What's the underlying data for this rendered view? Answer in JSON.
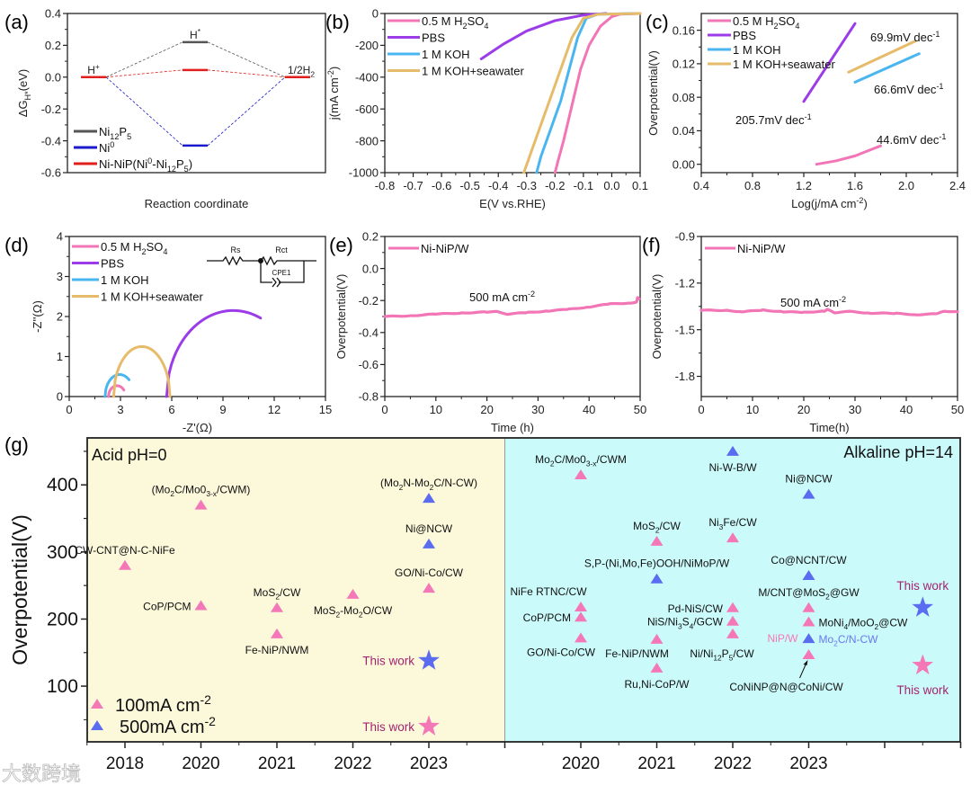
{
  "panel_labels": {
    "a": "(a)",
    "b": "(b)",
    "c": "(c)",
    "d": "(d)",
    "e": "(e)",
    "f": "(f)",
    "g": "(g)"
  },
  "watermark": "大数跨境",
  "chart_data": {
    "a": {
      "type": "line",
      "xlabel": "Reaction coordinate",
      "ylabel": "ΔG_{H*}(eV)",
      "ylim": [
        -0.6,
        0.4
      ],
      "yticks": [
        0.4,
        0.2,
        0.0,
        -0.2,
        -0.4,
        -0.6
      ],
      "yticklabels": [
        "0.4",
        "0.2",
        "0.0",
        "-0.2",
        "-0.4",
        "-0.6"
      ],
      "categories": [
        "H^{+}",
        "H^{*}",
        "1/2H_{2}"
      ],
      "series": [
        {
          "name": "Ni_{12}P_{5}",
          "color": "#555555",
          "values": [
            0,
            0.22,
            0
          ]
        },
        {
          "name": "Ni^{0}",
          "color": "#1a1acc",
          "values": [
            0,
            -0.43,
            0
          ]
        },
        {
          "name": "Ni-NiP(Ni^{0}-Ni_{12}P_{5})",
          "color": "#e0201c",
          "values": [
            0,
            0.045,
            0
          ]
        }
      ]
    },
    "b": {
      "type": "line",
      "xlabel": "E(V vs.RHE)",
      "ylabel": "j(mA cm^{-2})",
      "xlim": [
        -0.8,
        0.1
      ],
      "ylim": [
        -1000,
        0
      ],
      "xticks": [
        -0.8,
        -0.7,
        -0.6,
        -0.5,
        -0.4,
        -0.3,
        -0.2,
        -0.1,
        0.0,
        0.1
      ],
      "xticklabels": [
        "-0.8",
        "-0.7",
        "-0.6",
        "-0.5",
        "-0.4",
        "-0.3",
        "-0.2",
        "-0.1",
        "0.0",
        "0.1"
      ],
      "yticks": [
        0,
        -200,
        -400,
        -600,
        -800,
        -1000
      ],
      "yticklabels": [
        "0",
        "-200",
        "-400",
        "-600",
        "-800",
        "-1000"
      ],
      "series": [
        {
          "name": "0.5 M H_{2}SO_{4}",
          "color": "#f275b6",
          "points": [
            [
              0.1,
              0
            ],
            [
              0.03,
              -4
            ],
            [
              0.0,
              -20
            ],
            [
              -0.04,
              -80
            ],
            [
              -0.08,
              -200
            ],
            [
              -0.11,
              -350
            ],
            [
              -0.13,
              -500
            ],
            [
              -0.15,
              -650
            ],
            [
              -0.17,
              -800
            ],
            [
              -0.19,
              -930
            ],
            [
              -0.2,
              -1000
            ]
          ]
        },
        {
          "name": "PBS",
          "color": "#9b3ce8",
          "points": [
            [
              -0.02,
              0
            ],
            [
              -0.1,
              -10
            ],
            [
              -0.2,
              -45
            ],
            [
              -0.3,
              -110
            ],
            [
              -0.38,
              -190
            ],
            [
              -0.46,
              -285
            ]
          ]
        },
        {
          "name": "1 M KOH",
          "color": "#4ab6ef",
          "points": [
            [
              0.08,
              0
            ],
            [
              -0.05,
              -5
            ],
            [
              -0.09,
              -30
            ],
            [
              -0.12,
              -150
            ],
            [
              -0.15,
              -350
            ],
            [
              -0.18,
              -550
            ],
            [
              -0.22,
              -750
            ],
            [
              -0.25,
              -900
            ],
            [
              -0.265,
              -1000
            ]
          ]
        },
        {
          "name": "1 M KOH+seawater",
          "color": "#e6bc6a",
          "points": [
            [
              0.1,
              0
            ],
            [
              -0.05,
              -5
            ],
            [
              -0.1,
              -30
            ],
            [
              -0.14,
              -150
            ],
            [
              -0.18,
              -350
            ],
            [
              -0.22,
              -550
            ],
            [
              -0.26,
              -750
            ],
            [
              -0.29,
              -900
            ],
            [
              -0.31,
              -1000
            ]
          ]
        }
      ]
    },
    "c": {
      "type": "line",
      "xlabel": "Log(j/mA cm^{-2})",
      "ylabel": "Overpotential(V)",
      "xlim": [
        0.4,
        2.4
      ],
      "ylim": [
        -0.01,
        0.18
      ],
      "xticks": [
        0.4,
        0.8,
        1.2,
        1.6,
        2.0,
        2.4
      ],
      "xticklabels": [
        "0.4",
        "0.8",
        "1.2",
        "1.6",
        "2.0",
        "2.4"
      ],
      "yticks": [
        0,
        0.04,
        0.08,
        0.12,
        0.16
      ],
      "yticklabels": [
        "0.00",
        "0.04",
        "0.08",
        "0.12",
        "0.16"
      ],
      "series": [
        {
          "name": "0.5 M H_{2}SO_{4}",
          "color": "#f275b6",
          "points": [
            [
              1.3,
              0
            ],
            [
              1.45,
              0.004
            ],
            [
              1.6,
              0.01
            ],
            [
              1.7,
              0.016
            ],
            [
              1.8,
              0.022
            ]
          ],
          "tafel": "44.6mV dec^{-1}"
        },
        {
          "name": "PBS",
          "color": "#9b3ce8",
          "points": [
            [
              1.2,
              0.075
            ],
            [
              1.6,
              0.168
            ]
          ],
          "tafel": "205.7mV dec^{-1}"
        },
        {
          "name": "1 M KOH",
          "color": "#4ab6ef",
          "points": [
            [
              1.6,
              0.098
            ],
            [
              2.1,
              0.132
            ]
          ],
          "tafel": "66.6mV dec^{-1}"
        },
        {
          "name": "1 M KOH+seawater",
          "color": "#e6bc6a",
          "points": [
            [
              1.55,
              0.11
            ],
            [
              2.07,
              0.147
            ]
          ],
          "tafel": "69.9mV dec^{-1}"
        }
      ]
    },
    "d": {
      "type": "line",
      "xlabel": "-Z'(Ω)",
      "ylabel": "-Z''(Ω)",
      "xlim": [
        0,
        15
      ],
      "ylim": [
        0,
        4
      ],
      "xticks": [
        0,
        3,
        6,
        9,
        12,
        15
      ],
      "xticklabels": [
        "0",
        "3",
        "6",
        "9",
        "12",
        "15"
      ],
      "yticks": [
        0,
        1,
        2,
        3,
        4
      ],
      "yticklabels": [
        "0",
        "1",
        "2",
        "3",
        "4"
      ],
      "circuit": {
        "r1": "Rs",
        "r2": "Rct",
        "cpe": "CPE1"
      },
      "series": [
        {
          "name": "0.5 M H_{2}SO_{4}",
          "color": "#f275b6",
          "z_start": 2.3,
          "z_end": 3.3,
          "peak": 0.27,
          "z_stop": 3.2
        },
        {
          "name": "PBS",
          "color": "#9b3ce8",
          "z_start": 5.7,
          "z_end": 13.5,
          "peak": 2.15,
          "z_stop": 11.2
        },
        {
          "name": "1 M KOH",
          "color": "#4ab6ef",
          "z_start": 2.1,
          "z_end": 3.8,
          "peak": 0.55,
          "z_stop": 3.5
        },
        {
          "name": "1 M KOH+seawater",
          "color": "#e6bc6a",
          "z_start": 2.6,
          "z_end": 5.9,
          "peak": 1.25,
          "z_stop": 5.9
        }
      ]
    },
    "e": {
      "type": "line",
      "xlabel": "Time (h)",
      "ylabel": "Overpotential(V)",
      "annotation": "500 mA cm^{-2}",
      "xlim": [
        0,
        50
      ],
      "ylim": [
        -0.8,
        0.2
      ],
      "xticks": [
        0,
        10,
        20,
        30,
        40,
        50
      ],
      "xticklabels": [
        "0",
        "10",
        "20",
        "30",
        "40",
        "50"
      ],
      "yticks": [
        0.2,
        0.0,
        -0.2,
        -0.4,
        -0.6,
        -0.8
      ],
      "yticklabels": [
        "0.2",
        "0.0",
        "-0.2",
        "-0.4",
        "-0.6",
        "-0.8"
      ],
      "series": [
        {
          "name": "Ni-NiP/W",
          "color": "#f275b6",
          "points": [
            [
              0,
              -0.3
            ],
            [
              5,
              -0.295
            ],
            [
              10,
              -0.285
            ],
            [
              15,
              -0.278
            ],
            [
              20,
              -0.272
            ],
            [
              22,
              -0.27
            ],
            [
              24,
              -0.285
            ],
            [
              28,
              -0.275
            ],
            [
              32,
              -0.265
            ],
            [
              36,
              -0.255
            ],
            [
              40,
              -0.24
            ],
            [
              44,
              -0.222
            ],
            [
              48,
              -0.215
            ],
            [
              49.3,
              -0.21
            ],
            [
              49.5,
              -0.18
            ],
            [
              49.8,
              -0.19
            ]
          ]
        }
      ]
    },
    "f": {
      "type": "line",
      "xlabel": "Time(h)",
      "ylabel": "Overpotential(V)",
      "annotation": "500 mA cm^{-2}",
      "xlim": [
        0,
        50
      ],
      "ylim": [
        -1.93,
        -0.9
      ],
      "xticks": [
        0,
        10,
        20,
        30,
        40,
        50
      ],
      "xticklabels": [
        "0",
        "10",
        "20",
        "30",
        "40",
        "50"
      ],
      "yticks": [
        -0.9,
        -1.2,
        -1.5,
        -1.8
      ],
      "yticklabels": [
        "-0.9",
        "-1.2",
        "-1.5",
        "-1.8"
      ],
      "series": [
        {
          "name": "Ni-NiP/W",
          "color": "#f275b6",
          "points": [
            [
              0,
              -1.375
            ],
            [
              5,
              -1.375
            ],
            [
              8,
              -1.385
            ],
            [
              12,
              -1.373
            ],
            [
              16,
              -1.385
            ],
            [
              20,
              -1.388
            ],
            [
              24,
              -1.38
            ],
            [
              24.6,
              -1.37
            ],
            [
              26,
              -1.39
            ],
            [
              29,
              -1.383
            ],
            [
              33,
              -1.393
            ],
            [
              38,
              -1.395
            ],
            [
              42,
              -1.403
            ],
            [
              46,
              -1.398
            ],
            [
              47.5,
              -1.38
            ],
            [
              50,
              -1.385
            ]
          ]
        }
      ]
    },
    "g": {
      "type": "scatter",
      "ylabel": "Overpotential(V)",
      "ylim": [
        17,
        470
      ],
      "yticks": [
        100,
        200,
        300,
        400
      ],
      "yticklabels": [
        "100",
        "200",
        "300",
        "400"
      ],
      "regions": {
        "acid": {
          "title": "Acid pH=0",
          "color": "#fcf8da"
        },
        "alkaline": {
          "title": "Alkaline pH=14",
          "color": "#cbfafa"
        }
      },
      "years": {
        "acid": [
          "2018",
          "2020",
          "2021",
          "2022",
          "2023"
        ],
        "alkaline": [
          "2020",
          "2021",
          "2022",
          "2023"
        ]
      },
      "legend": [
        {
          "label": "100mA cm^{-2}",
          "color": "#f478b8"
        },
        {
          "label": "500mA cm^{-2}",
          "color": "#5a6cf0"
        }
      ],
      "this_work_color": "#a3246e",
      "points": [
        {
          "region": "acid",
          "year": "2018",
          "value": 280,
          "current": "100",
          "label": "CW-CNT@N-C-NiFe",
          "side": "above"
        },
        {
          "region": "acid",
          "year": "2020",
          "value": 370,
          "current": "100",
          "label": "(Mo_{2}C/Mo0_{3-x}/CWM)",
          "side": "above"
        },
        {
          "region": "acid",
          "year": "2020",
          "value": 220,
          "current": "100",
          "label": "CoP/PCM",
          "side": "left"
        },
        {
          "region": "acid",
          "year": "2021",
          "value": 217,
          "current": "100",
          "label": "MoS_{2}/CW",
          "side": "above"
        },
        {
          "region": "acid",
          "year": "2021",
          "value": 178,
          "current": "100",
          "label": "Fe-NiP/NWM",
          "side": "below"
        },
        {
          "region": "acid",
          "year": "2022",
          "value": 237,
          "current": "100",
          "label": "MoS_{2}-Mo_{2}O/CW",
          "side": "below"
        },
        {
          "region": "acid",
          "year": "2023",
          "value": 246,
          "current": "100",
          "label": "GO/Ni-Co/CW",
          "side": "above"
        },
        {
          "region": "acid",
          "year": "2023",
          "value": 380,
          "current": "500",
          "label": "(Mo_{2}N-Mo_{2}C/N-CW)",
          "side": "above"
        },
        {
          "region": "acid",
          "year": "2023",
          "value": 312,
          "current": "500",
          "label": "Ni@NCW",
          "side": "above"
        },
        {
          "region": "acid",
          "year": "2023",
          "value": 138,
          "current": "500",
          "label": "This work",
          "side": "left",
          "this_work": true
        },
        {
          "region": "acid",
          "year": "2023",
          "value": 40,
          "current": "100",
          "label": "This work",
          "side": "left",
          "this_work": true
        },
        {
          "region": "alkaline",
          "year": "2020",
          "value": 415,
          "current": "100",
          "label": "Mo_{2}C/Mo0_{3-x}/CWM",
          "side": "above"
        },
        {
          "region": "alkaline",
          "year": "2020",
          "value": 218,
          "current": "100",
          "label": "NiFe RTNC/CW",
          "side": "above-left"
        },
        {
          "region": "alkaline",
          "year": "2020",
          "value": 203,
          "current": "100",
          "label": "CoP/PCM",
          "side": "left"
        },
        {
          "region": "alkaline",
          "year": "2020",
          "value": 172,
          "current": "100",
          "label": "GO/Ni-Co/CW",
          "side": "below-left"
        },
        {
          "region": "alkaline",
          "year": "2021",
          "value": 316,
          "current": "100",
          "label": "MoS_{2}/CW",
          "side": "above"
        },
        {
          "region": "alkaline",
          "year": "2021",
          "value": 260,
          "current": "500",
          "label": "S,P-(Ni,Mo,Fe)OOH/NiMoP/W",
          "side": "above"
        },
        {
          "region": "alkaline",
          "year": "2021",
          "value": 170,
          "current": "100",
          "label": "Fe-NiP/NWM",
          "side": "below-left"
        },
        {
          "region": "alkaline",
          "year": "2021",
          "value": 127,
          "current": "100",
          "label": "Ru,Ni-CoP/W",
          "side": "below"
        },
        {
          "region": "alkaline",
          "year": "2022",
          "value": 450,
          "current": "500",
          "label": "Ni-W-B/W",
          "side": "below"
        },
        {
          "region": "alkaline",
          "year": "2022",
          "value": 321,
          "current": "100",
          "label": "Ni_{3}Fe/CW",
          "side": "above"
        },
        {
          "region": "alkaline",
          "year": "2022",
          "value": 217,
          "current": "100",
          "label": "Pd-NiS/CW",
          "side": "left"
        },
        {
          "region": "alkaline",
          "year": "2022",
          "value": 197,
          "current": "100",
          "label": "NiS/Ni_{3}S_{4}/GCW",
          "side": "left"
        },
        {
          "region": "alkaline",
          "year": "2022",
          "value": 178,
          "current": "100",
          "label": "Ni/Ni_{12}P_{5}/CW",
          "side": "below"
        },
        {
          "region": "alkaline",
          "year": "2023",
          "value": 386,
          "current": "500",
          "label": "Ni@NCW",
          "side": "above"
        },
        {
          "region": "alkaline",
          "year": "2023",
          "value": 265,
          "current": "500",
          "label": "Co@NCNT/CW",
          "side": "above"
        },
        {
          "region": "alkaline",
          "year": "2023",
          "value": 217,
          "current": "100",
          "label": "M/CNT@MoS_{2}@GW",
          "side": "above"
        },
        {
          "region": "alkaline",
          "year": "2023",
          "value": 196,
          "current": "100",
          "label": "MoNi_{4}/MoO_{2}@CW",
          "side": "right"
        },
        {
          "region": "alkaline",
          "year": "2023",
          "value": 171,
          "current": "500",
          "label": "Mo_{2}C/N-CW",
          "side": "right",
          "label_color": "#6a78ee",
          "extra_left": "NiP/W"
        },
        {
          "region": "alkaline",
          "year": "2023",
          "value": 147,
          "current": "100",
          "label": "CoNiNP@N@CoNi/CW",
          "side": "arrow-below"
        },
        {
          "region": "alkaline",
          "year": "this work",
          "value": 217,
          "current": "500",
          "label": "This work",
          "side": "above",
          "this_work": true
        },
        {
          "region": "alkaline",
          "year": "this work",
          "value": 131,
          "current": "100",
          "label": "This work",
          "side": "below",
          "this_work": true
        }
      ]
    }
  }
}
